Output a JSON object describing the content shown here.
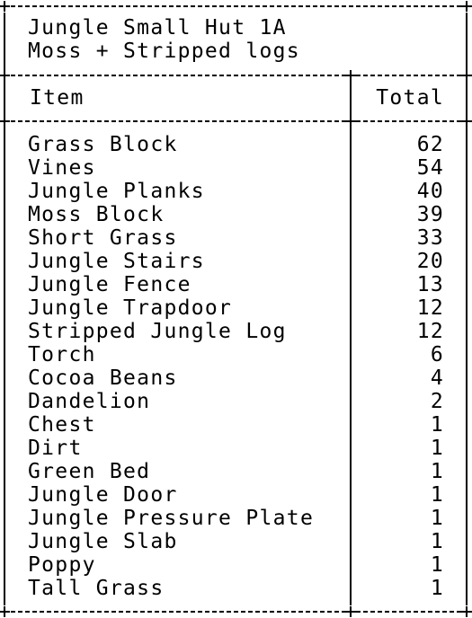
{
  "title": {
    "line1": "Jungle Small Hut 1A",
    "line2": "Moss + Stripped logs"
  },
  "table": {
    "headers": {
      "item": "Item",
      "total": "Total"
    },
    "rows": [
      {
        "item": "Grass Block",
        "total": "62"
      },
      {
        "item": "Vines",
        "total": "54"
      },
      {
        "item": "Jungle Planks",
        "total": "40"
      },
      {
        "item": "Moss Block",
        "total": "39"
      },
      {
        "item": "Short Grass",
        "total": "33"
      },
      {
        "item": "Jungle Stairs",
        "total": "20"
      },
      {
        "item": "Jungle Fence",
        "total": "13"
      },
      {
        "item": "Jungle Trapdoor",
        "total": "12"
      },
      {
        "item": "Stripped Jungle Log",
        "total": "12"
      },
      {
        "item": "Torch",
        "total": "6"
      },
      {
        "item": "Cocoa Beans",
        "total": "4"
      },
      {
        "item": "Dandelion",
        "total": "2"
      },
      {
        "item": "Chest",
        "total": "1"
      },
      {
        "item": "Dirt",
        "total": "1"
      },
      {
        "item": "Green Bed",
        "total": "1"
      },
      {
        "item": "Jungle Door",
        "total": "1"
      },
      {
        "item": "Jungle Pressure Plate",
        "total": "1"
      },
      {
        "item": "Jungle Slab",
        "total": "1"
      },
      {
        "item": "Poppy",
        "total": "1"
      },
      {
        "item": "Tall Grass",
        "total": "1"
      }
    ]
  }
}
